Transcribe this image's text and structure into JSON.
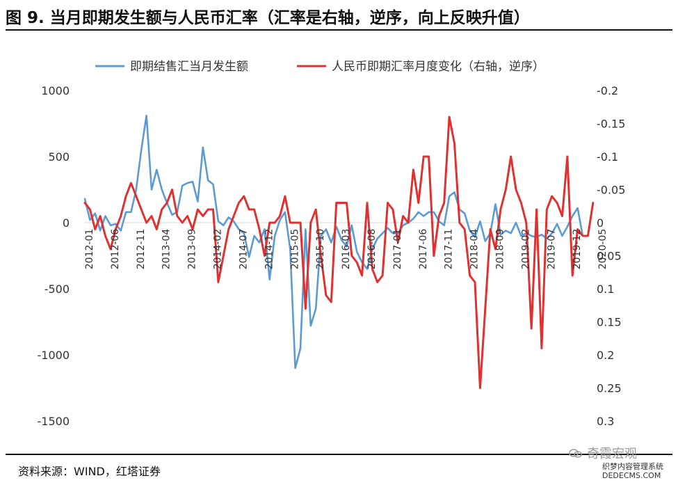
{
  "title": "图 9. 当月即期发生额与人民币汇率（汇率是右轴，逆序，向上反映升值）",
  "source": "资料来源：WIND，红塔证券",
  "watermark": "奇霞宏观",
  "watermark2_line1": "织梦内容管理系统",
  "watermark2_line2": "DEDECMS.COM",
  "colors": {
    "blue": "#5b9bd5",
    "red": "#e03030",
    "axis_text": "#333333",
    "zero_line": "#d9d9d9"
  },
  "chart_data": {
    "type": "line",
    "legend_position": "top",
    "grid": false,
    "x_tick_labels": [
      "2012-01",
      "2012-06",
      "2012-11",
      "2013-04",
      "2013-09",
      "2014-02",
      "2014-07",
      "2014-12",
      "2015-05",
      "2015-10",
      "2016-03",
      "2016-08",
      "2017-01",
      "2017-06",
      "2017-11",
      "2018-04",
      "2018-09",
      "2019-02",
      "2019-07",
      "2019-12",
      "2020-05"
    ],
    "left_axis": {
      "ylim": [
        -1500,
        1000
      ],
      "ticks": [
        "1000",
        "500",
        "0",
        "-500",
        "-1000",
        "-1500"
      ],
      "tick_values": [
        1000,
        500,
        0,
        -500,
        -1000,
        -1500
      ]
    },
    "right_axis": {
      "ylim": [
        0.3,
        -0.2
      ],
      "inverted": true,
      "ticks": [
        "-0.2",
        "-0.15",
        "-0.1",
        "-0.05",
        "0",
        "0.05",
        "0.1",
        "0.15",
        "0.2",
        "0.25",
        "0.3"
      ],
      "tick_values": [
        -0.2,
        -0.15,
        -0.1,
        -0.05,
        0,
        0.05,
        0.1,
        0.15,
        0.2,
        0.25,
        0.3
      ]
    },
    "series": [
      {
        "name": "即期结售汇当月发生额",
        "axis": "left",
        "color": "#5b9bd5",
        "values": [
          180,
          20,
          70,
          -60,
          50,
          -20,
          -10,
          -60,
          80,
          80,
          250,
          550,
          810,
          250,
          400,
          250,
          150,
          60,
          80,
          280,
          300,
          310,
          160,
          570,
          320,
          290,
          10,
          -20,
          40,
          10,
          -50,
          -80,
          -260,
          -100,
          -150,
          -50,
          -430,
          -100,
          20,
          80,
          -200,
          -1100,
          -950,
          -50,
          -780,
          -650,
          -100,
          -50,
          -150,
          -30,
          -130,
          -180,
          -20,
          -220,
          -300,
          -350,
          -200,
          -120,
          -80,
          -40,
          -80,
          -80,
          -20,
          0,
          30,
          80,
          50,
          80,
          80,
          10,
          -20,
          200,
          230,
          100,
          70,
          -60,
          -110,
          10,
          -140,
          -80,
          140,
          -90,
          -60,
          -80,
          0,
          -100,
          -80,
          -100,
          -110,
          -90,
          -120,
          -80,
          -10,
          -100,
          -30,
          50,
          110,
          -100
        ]
      },
      {
        "name": "人民币即期汇率月度变化（右轴，逆序）",
        "axis": "right",
        "color": "#e03030",
        "values": [
          -0.03,
          -0.02,
          0.01,
          -0.01,
          0.02,
          0.04,
          0.01,
          -0.01,
          -0.04,
          -0.06,
          -0.04,
          -0.02,
          0.0,
          -0.01,
          0.01,
          -0.02,
          -0.03,
          -0.05,
          -0.01,
          0.0,
          -0.01,
          0.01,
          -0.02,
          -0.01,
          -0.02,
          -0.02,
          0.09,
          0.05,
          0.01,
          -0.01,
          -0.03,
          -0.04,
          -0.02,
          -0.02,
          0.01,
          0.05,
          0.0,
          0.0,
          -0.01,
          -0.04,
          0.0,
          0.0,
          0.0,
          0.13,
          0.0,
          -0.02,
          0.05,
          0.11,
          0.12,
          -0.03,
          -0.03,
          -0.03,
          0.05,
          0.06,
          0.08,
          -0.03,
          0.07,
          0.09,
          0.08,
          -0.03,
          -0.02,
          0.03,
          -0.01,
          0.0,
          -0.08,
          -0.03,
          -0.1,
          -0.1,
          0.05,
          -0.01,
          -0.03,
          -0.16,
          -0.12,
          0.0,
          0.01,
          0.08,
          0.09,
          0.25,
          0.13,
          0.01,
          0.04,
          -0.02,
          -0.05,
          -0.1,
          -0.05,
          -0.03,
          0.0,
          0.16,
          -0.02,
          0.19,
          -0.02,
          -0.04,
          -0.03,
          -0.01,
          -0.1,
          0.08,
          0.01,
          0.02,
          0.02,
          -0.03
        ]
      }
    ]
  }
}
